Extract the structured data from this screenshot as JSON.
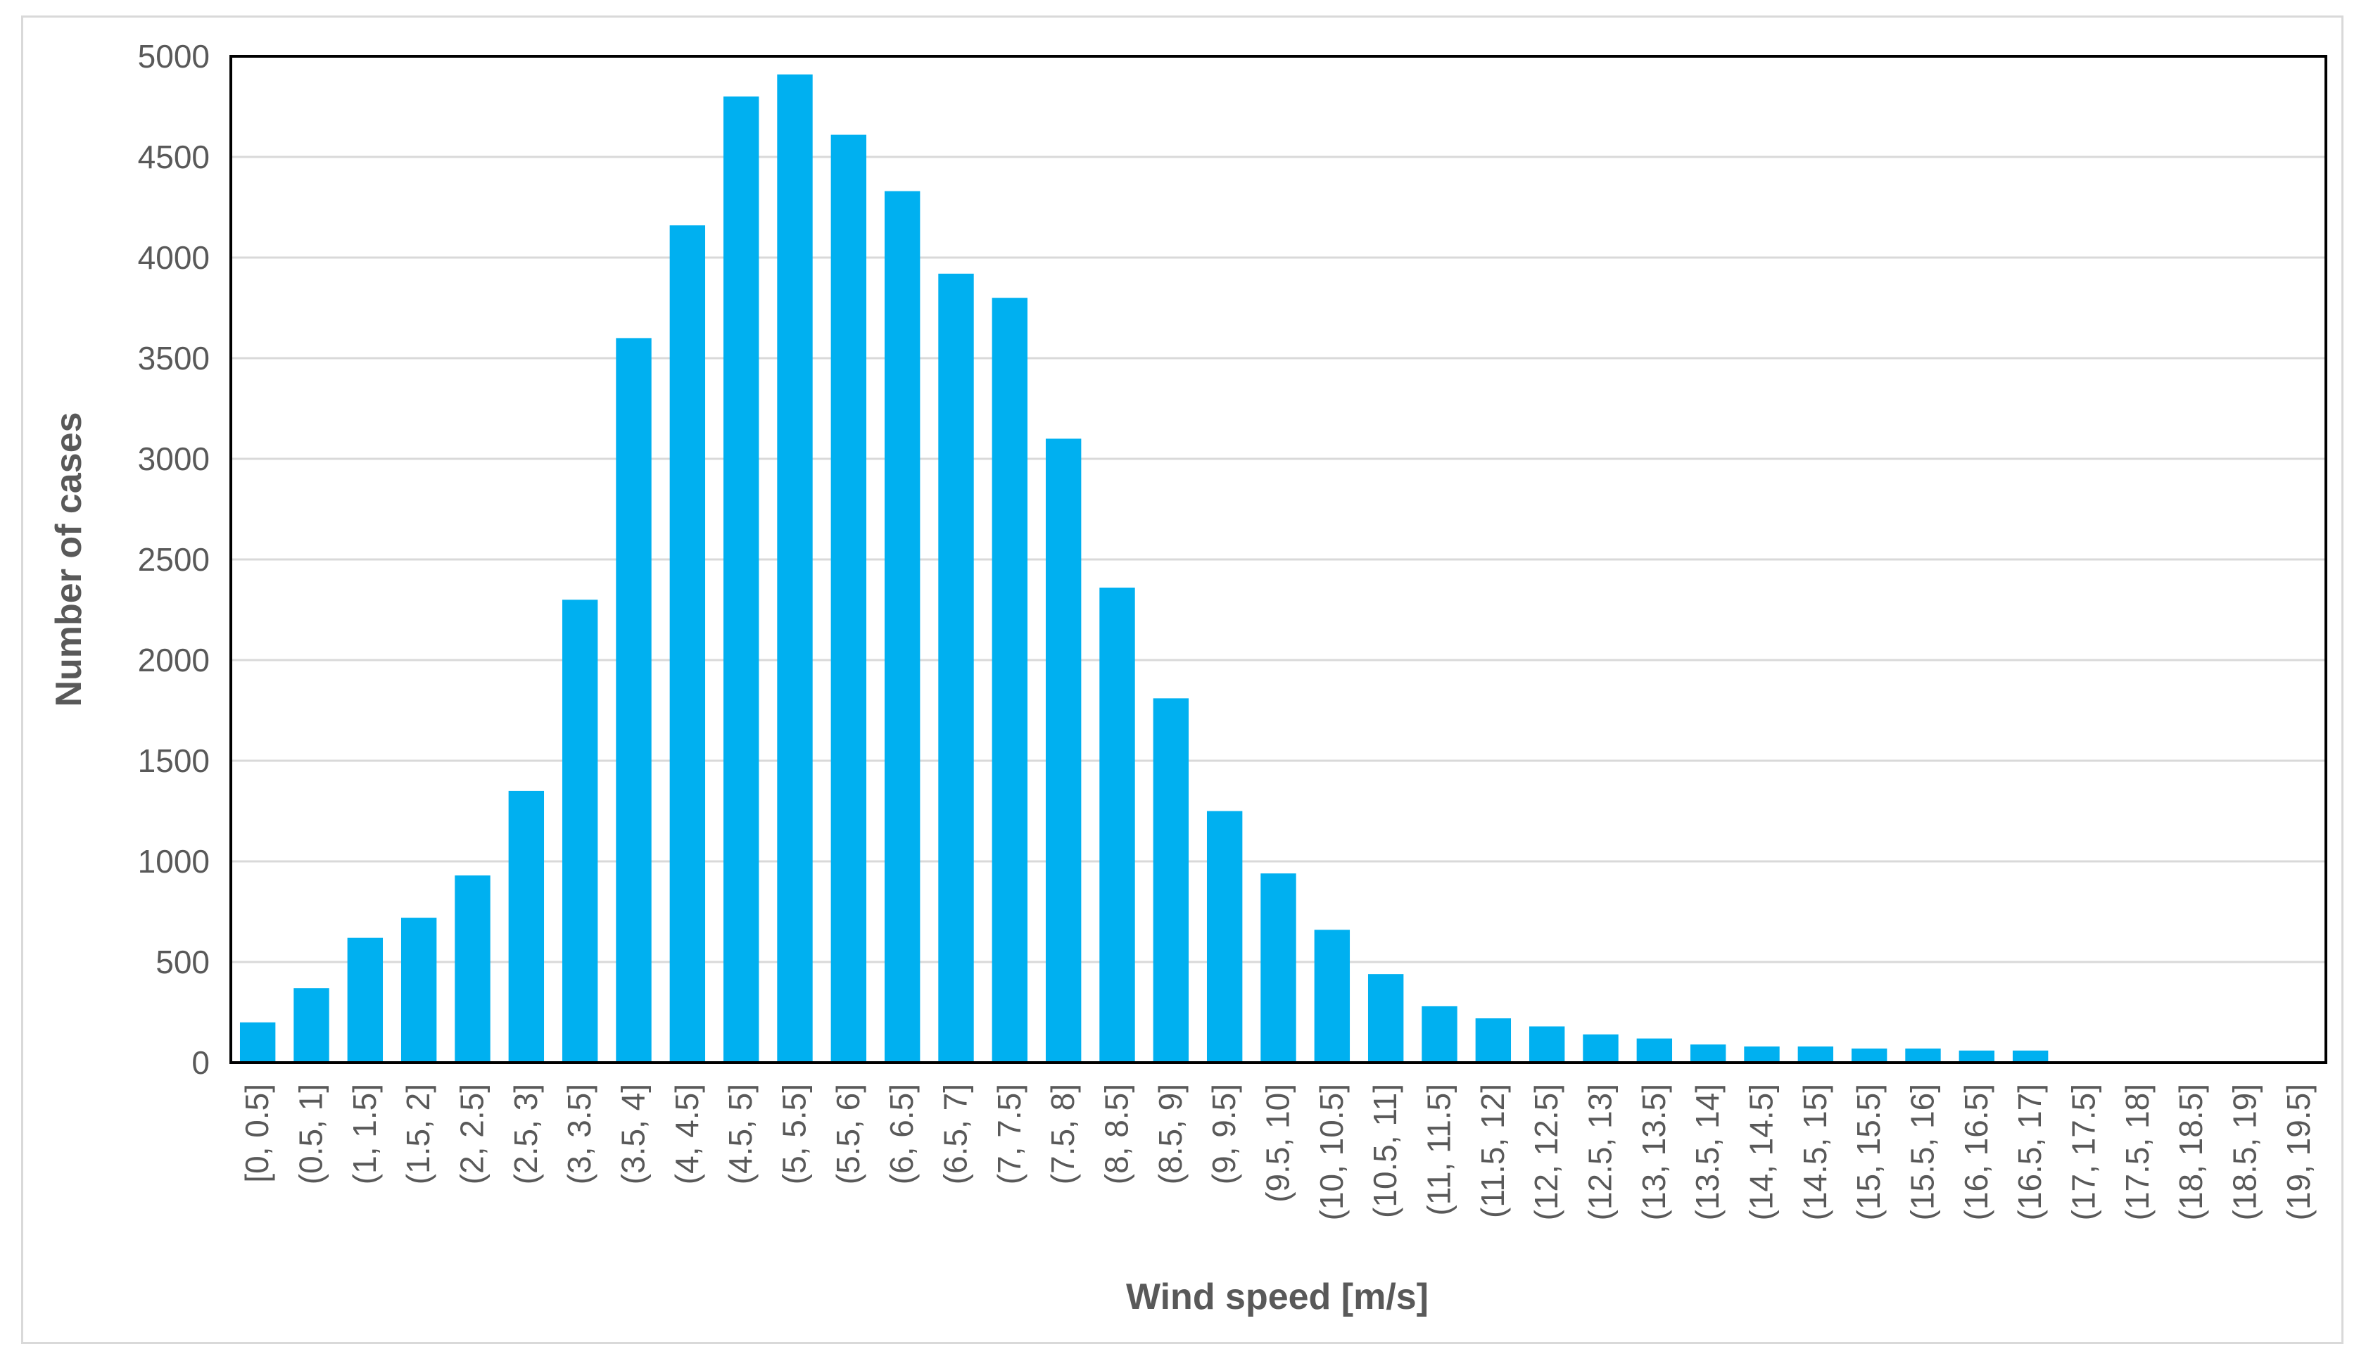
{
  "chart_data": {
    "type": "bar",
    "title": "",
    "xlabel": "Wind speed [m/s]",
    "ylabel": "Number of cases",
    "ylim": [
      0,
      5000
    ],
    "yticks": [
      0,
      500,
      1000,
      1500,
      2000,
      2500,
      3000,
      3500,
      4000,
      4500,
      5000
    ],
    "grid": true,
    "legend": "none",
    "bar_color": "#00b0f0",
    "categories": [
      "[0, 0.5]",
      "(0.5, 1]",
      "(1, 1.5]",
      "(1.5, 2]",
      "(2, 2.5]",
      "(2.5, 3]",
      "(3, 3.5]",
      "(3.5, 4]",
      "(4, 4.5]",
      "(4.5, 5]",
      "(5, 5.5]",
      "(5.5, 6]",
      "(6, 6.5]",
      "(6.5, 7]",
      "(7, 7.5]",
      "(7.5, 8]",
      "(8, 8.5]",
      "(8.5, 9]",
      "(9, 9.5]",
      "(9.5, 10]",
      "(10, 10.5]",
      "(10.5, 11]",
      "(11, 11.5]",
      "(11.5, 12]",
      "(12, 12.5]",
      "(12.5, 13]",
      "(13, 13.5]",
      "(13.5, 14]",
      "(14, 14.5]",
      "(14.5, 15]",
      "(15, 15.5]",
      "(15.5, 16]",
      "(16, 16.5]",
      "(16.5, 17]",
      "(17, 17.5]",
      "(17.5, 18]",
      "(18, 18.5]",
      "(18.5, 19]",
      "(19, 19.5]"
    ],
    "values": [
      200,
      370,
      620,
      720,
      930,
      1350,
      2300,
      3600,
      4160,
      4800,
      4910,
      4610,
      4330,
      3920,
      3800,
      3100,
      2360,
      1810,
      1250,
      940,
      660,
      440,
      280,
      220,
      180,
      140,
      120,
      90,
      80,
      80,
      70,
      70,
      60,
      60,
      0,
      0,
      0,
      0,
      0
    ]
  }
}
